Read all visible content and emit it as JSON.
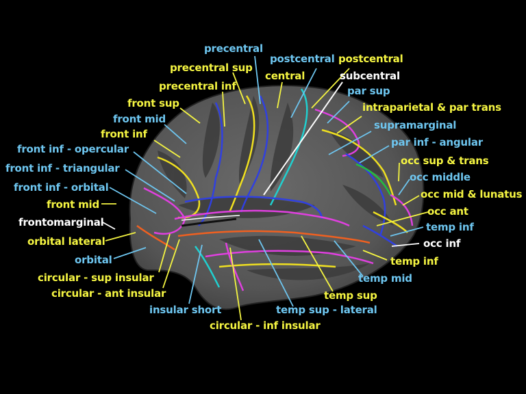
{
  "colors": {
    "yellow": "#f5f542",
    "blue": "#6ec6f0",
    "white": "#ffffff",
    "background": "#000000",
    "surface": "#5a5a5a"
  },
  "labels": [
    {
      "id": "precentral",
      "text": "precentral",
      "color": "blue"
    },
    {
      "id": "postcentral-blue",
      "text": "postcentral",
      "color": "blue"
    },
    {
      "id": "postcentral-yellow",
      "text": "postcentral",
      "color": "yellow"
    },
    {
      "id": "precentral-sup",
      "text": "precentral sup",
      "color": "yellow"
    },
    {
      "id": "central",
      "text": "central",
      "color": "yellow"
    },
    {
      "id": "subcentral",
      "text": "subcentral",
      "color": "white"
    },
    {
      "id": "precentral-inf",
      "text": "precentral inf",
      "color": "yellow"
    },
    {
      "id": "par-sup",
      "text": "par sup",
      "color": "blue"
    },
    {
      "id": "front-sup",
      "text": "front sup",
      "color": "yellow"
    },
    {
      "id": "intraparietal",
      "text": "intraparietal & par trans",
      "color": "yellow"
    },
    {
      "id": "front-mid-top",
      "text": "front mid",
      "color": "blue"
    },
    {
      "id": "supramarginal",
      "text": "supramarginal",
      "color": "blue"
    },
    {
      "id": "front-inf",
      "text": "front inf",
      "color": "yellow"
    },
    {
      "id": "par-inf-angular",
      "text": "par inf - angular",
      "color": "blue"
    },
    {
      "id": "front-inf-opercular",
      "text": "front inf - opercular",
      "color": "blue"
    },
    {
      "id": "occ-sup-trans",
      "text": "occ sup & trans",
      "color": "yellow"
    },
    {
      "id": "front-inf-triangular",
      "text": "front inf - triangular",
      "color": "blue"
    },
    {
      "id": "occ-middle",
      "text": "occ middle",
      "color": "blue"
    },
    {
      "id": "front-inf-orbital",
      "text": "front inf - orbital",
      "color": "blue"
    },
    {
      "id": "occ-mid-lunatus",
      "text": "occ mid & lunatus",
      "color": "yellow"
    },
    {
      "id": "front-mid-left",
      "text": "front mid",
      "color": "yellow"
    },
    {
      "id": "occ-ant",
      "text": "occ ant",
      "color": "yellow"
    },
    {
      "id": "frontomarginal",
      "text": "frontomarginal",
      "color": "white"
    },
    {
      "id": "temp-inf-blue",
      "text": "temp inf",
      "color": "blue"
    },
    {
      "id": "orbital-lateral",
      "text": "orbital lateral",
      "color": "yellow"
    },
    {
      "id": "occ-inf",
      "text": "occ inf",
      "color": "white"
    },
    {
      "id": "orbital",
      "text": "orbital",
      "color": "blue"
    },
    {
      "id": "temp-inf-yellow",
      "text": "temp inf",
      "color": "yellow"
    },
    {
      "id": "circular-sup-insular",
      "text": "circular - sup insular",
      "color": "yellow"
    },
    {
      "id": "temp-mid",
      "text": "temp mid",
      "color": "blue"
    },
    {
      "id": "circular-ant-insular",
      "text": "circular - ant insular",
      "color": "yellow"
    },
    {
      "id": "temp-sup",
      "text": "temp sup",
      "color": "yellow"
    },
    {
      "id": "insular-short",
      "text": "insular short",
      "color": "blue"
    },
    {
      "id": "temp-sup-lateral",
      "text": "temp sup - lateral",
      "color": "blue"
    },
    {
      "id": "circular-inf-insular",
      "text": "circular - inf insular",
      "color": "yellow"
    }
  ]
}
